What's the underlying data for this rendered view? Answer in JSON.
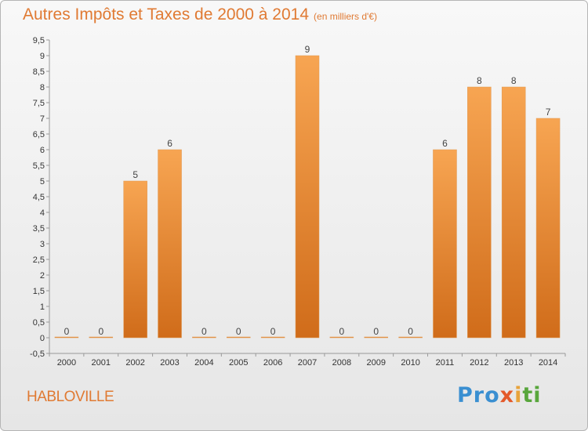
{
  "header": {
    "title": "Autres Impôts et Taxes de 2000 à 2014",
    "unit": "(en milliers d'€)"
  },
  "footer": {
    "commune": "HABLOVILLE",
    "logo": [
      "Pro",
      "x",
      "i",
      "ti"
    ]
  },
  "colors": {
    "accent": "#e07a33",
    "bar_light": "#f7a552",
    "bar_dark": "#d06c1a"
  },
  "chart_data": {
    "type": "bar",
    "title": "Autres Impôts et Taxes de 2000 à 2014",
    "subtitle": "(en milliers d'€)",
    "categories": [
      "2000",
      "2001",
      "2002",
      "2003",
      "2004",
      "2005",
      "2006",
      "2007",
      "2008",
      "2009",
      "2010",
      "2011",
      "2012",
      "2013",
      "2014"
    ],
    "values": [
      0,
      0,
      5,
      6,
      0,
      0,
      0,
      9,
      0,
      0,
      0,
      6,
      8,
      8,
      7
    ],
    "data_labels": [
      "0",
      "0",
      "5",
      "6",
      "0",
      "0",
      "0",
      "9",
      "0",
      "0",
      "0",
      "6",
      "8",
      "8",
      "7"
    ],
    "ylim": [
      -0.5,
      9.5
    ],
    "yticks": [
      -0.5,
      0,
      0.5,
      1,
      1.5,
      2,
      2.5,
      3,
      3.5,
      4,
      4.5,
      5,
      5.5,
      6,
      6.5,
      7,
      7.5,
      8,
      8.5,
      9,
      9.5
    ],
    "ytick_labels": [
      "-0,5",
      "0",
      "0,5",
      "1",
      "1,5",
      "2",
      "2,5",
      "3",
      "3,5",
      "4",
      "4,5",
      "5",
      "5,5",
      "6",
      "6,5",
      "7",
      "7,5",
      "8",
      "8,5",
      "9",
      "9,5"
    ],
    "grid": false,
    "legend": "none"
  }
}
